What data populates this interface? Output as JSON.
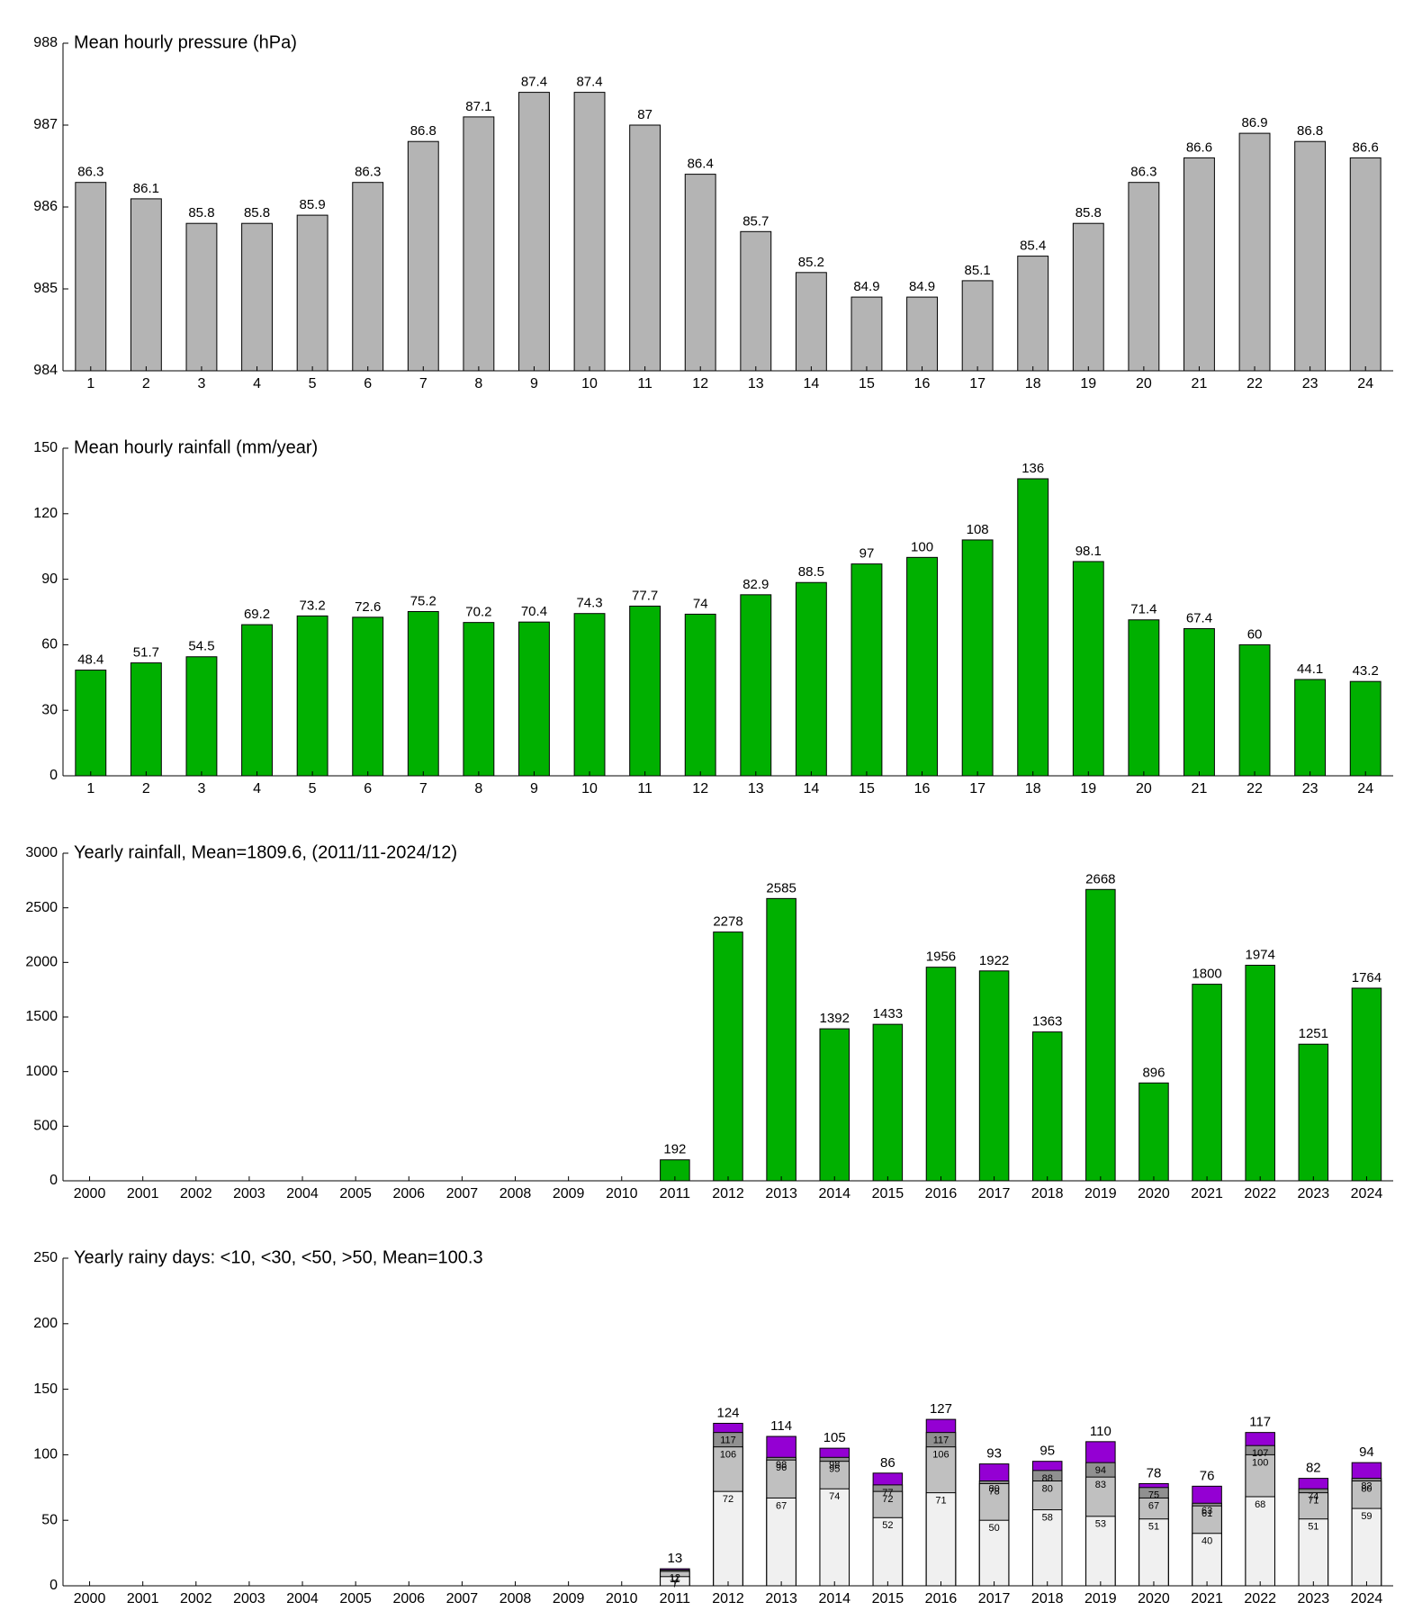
{
  "chart_data": [
    {
      "type": "bar",
      "title": "Mean hourly pressure (hPa)",
      "categories": [
        "1",
        "2",
        "3",
        "4",
        "5",
        "6",
        "7",
        "8",
        "9",
        "10",
        "11",
        "12",
        "13",
        "14",
        "15",
        "16",
        "17",
        "18",
        "19",
        "20",
        "21",
        "22",
        "23",
        "24"
      ],
      "series": [
        {
          "color": "#b4b4b4",
          "values": [
            986.3,
            986.1,
            985.8,
            985.8,
            985.9,
            986.3,
            986.8,
            987.1,
            987.4,
            987.4,
            987,
            986.4,
            985.7,
            985.2,
            984.9,
            984.9,
            985.1,
            985.4,
            985.8,
            986.3,
            986.6,
            986.9,
            986.8,
            986.6
          ],
          "value_labels": [
            "86.3",
            "86.1",
            "85.8",
            "85.8",
            "85.9",
            "86.3",
            "86.8",
            "87.1",
            "87.4",
            "87.4",
            "87",
            "86.4",
            "85.7",
            "85.2",
            "84.9",
            "84.9",
            "85.1",
            "85.4",
            "85.8",
            "86.3",
            "86.6",
            "86.9",
            "86.8",
            "86.6"
          ]
        }
      ],
      "ylim": [
        984,
        988
      ],
      "yticks": [
        984,
        985,
        986,
        987,
        988
      ]
    },
    {
      "type": "bar",
      "title": "Mean hourly rainfall (mm/year)",
      "categories": [
        "1",
        "2",
        "3",
        "4",
        "5",
        "6",
        "7",
        "8",
        "9",
        "10",
        "11",
        "12",
        "13",
        "14",
        "15",
        "16",
        "17",
        "18",
        "19",
        "20",
        "21",
        "22",
        "23",
        "24"
      ],
      "series": [
        {
          "color": "#00b000",
          "values": [
            48.4,
            51.7,
            54.5,
            69.2,
            73.2,
            72.6,
            75.2,
            70.2,
            70.4,
            74.3,
            77.7,
            74,
            82.9,
            88.5,
            97,
            100,
            108,
            136,
            98.1,
            71.4,
            67.4,
            60,
            44.1,
            43.2
          ]
        }
      ],
      "ylim": [
        0,
        150
      ],
      "yticks": [
        0,
        30,
        60,
        90,
        120,
        150
      ]
    },
    {
      "type": "bar",
      "title": "Yearly rainfall, Mean=1809.6, (2011/11-2024/12)",
      "categories": [
        "2000",
        "2001",
        "2002",
        "2003",
        "2004",
        "2005",
        "2006",
        "2007",
        "2008",
        "2009",
        "2010",
        "2011",
        "2012",
        "2013",
        "2014",
        "2015",
        "2016",
        "2017",
        "2018",
        "2019",
        "2020",
        "2021",
        "2022",
        "2023",
        "2024"
      ],
      "series": [
        {
          "color": "#00b000",
          "values": [
            null,
            null,
            null,
            null,
            null,
            null,
            null,
            null,
            null,
            null,
            null,
            192,
            2278,
            2585,
            1392,
            1433,
            1956,
            1922,
            1363,
            2668,
            896,
            1800,
            1974,
            1251,
            1764
          ]
        }
      ],
      "ylim": [
        0,
        3000
      ],
      "yticks": [
        0,
        500,
        1000,
        1500,
        2000,
        2500,
        3000
      ]
    },
    {
      "type": "bar",
      "overlap": true,
      "title": "Yearly rainy days: <10, <30, <50, >50, Mean=100.3",
      "categories": [
        "2000",
        "2001",
        "2002",
        "2003",
        "2004",
        "2005",
        "2006",
        "2007",
        "2008",
        "2009",
        "2010",
        "2011",
        "2012",
        "2013",
        "2014",
        "2015",
        "2016",
        "2017",
        "2018",
        "2019",
        "2020",
        "2021",
        "2022",
        "2023",
        "2024"
      ],
      "series": [
        {
          "color": "#f0f0f0",
          "values": [
            null,
            null,
            null,
            null,
            null,
            null,
            null,
            null,
            null,
            null,
            null,
            7,
            72,
            67,
            74,
            52,
            71,
            50,
            58,
            53,
            51,
            40,
            68,
            51,
            59
          ]
        },
        {
          "color": "#c0c0c0",
          "values": [
            null,
            null,
            null,
            null,
            null,
            null,
            null,
            null,
            null,
            null,
            null,
            11,
            106,
            96,
            95,
            72,
            106,
            78,
            80,
            83,
            67,
            61,
            100,
            71,
            80
          ]
        },
        {
          "color": "#909090",
          "values": [
            null,
            null,
            null,
            null,
            null,
            null,
            null,
            null,
            null,
            null,
            null,
            12,
            117,
            98,
            98,
            77,
            117,
            80,
            88,
            94,
            75,
            63,
            107,
            74,
            82
          ]
        },
        {
          "color": "#9400d3",
          "values": [
            null,
            null,
            null,
            null,
            null,
            null,
            null,
            null,
            null,
            null,
            null,
            13,
            124,
            114,
            105,
            86,
            127,
            93,
            95,
            110,
            78,
            76,
            117,
            82,
            94
          ]
        }
      ],
      "ylim": [
        0,
        250
      ],
      "yticks": [
        0,
        50,
        100,
        150,
        200,
        250
      ]
    }
  ]
}
